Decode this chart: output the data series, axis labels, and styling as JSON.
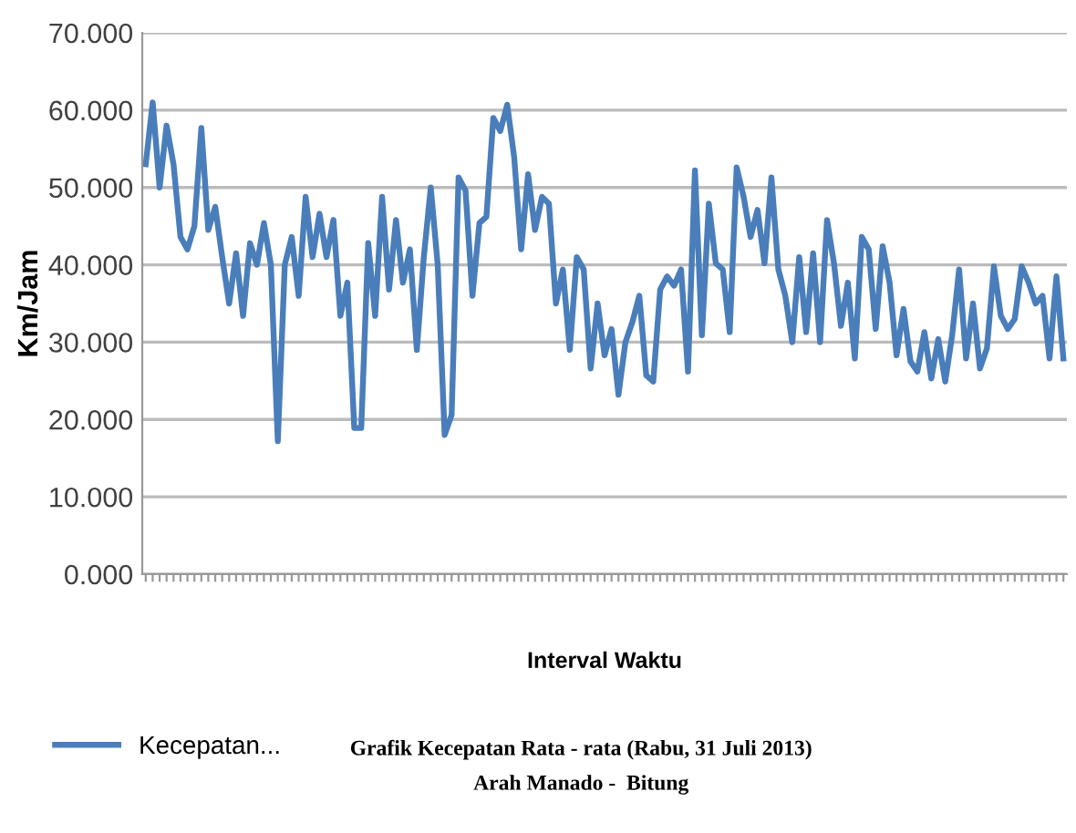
{
  "chart_data": {
    "type": "line",
    "title": "Grafik Kecepatan Rata - rata (Rabu, 31 Juli 2013)",
    "subtitle": "Arah Manado -  Bitung",
    "xlabel": "Interval Waktu",
    "ylabel": "Km/Jam",
    "categories": [
      null,
      null,
      null,
      null,
      null,
      null,
      null,
      null,
      null,
      null,
      null,
      null,
      null,
      null,
      null,
      null,
      null,
      null,
      null,
      null,
      null,
      null,
      null,
      null,
      null,
      null,
      null,
      null,
      null,
      null,
      null,
      null,
      null,
      null,
      null,
      null,
      null,
      null,
      null,
      null,
      null,
      null,
      null,
      null,
      null,
      null,
      null,
      null,
      null,
      null,
      null,
      null,
      null,
      null,
      null,
      null,
      null,
      null,
      null,
      null,
      null,
      null,
      null,
      null,
      null,
      null,
      null,
      null,
      null,
      null,
      null,
      null,
      null,
      null,
      null,
      null,
      null,
      null,
      null,
      null,
      null,
      null,
      null,
      null,
      null,
      null,
      null,
      null,
      null,
      null,
      null,
      null,
      null,
      null,
      null,
      null,
      null,
      null,
      null,
      null,
      null,
      null,
      null,
      null,
      null,
      null,
      null,
      null,
      null,
      null,
      null,
      null,
      null,
      null,
      null,
      null,
      null,
      null,
      null,
      null,
      null,
      null,
      null,
      null,
      null,
      null,
      null,
      null,
      null,
      null,
      null,
      null,
      null
    ],
    "series": [
      {
        "name": "Kecepatan...",
        "color": "#4a7ebb",
        "values": [
          53,
          61,
          50,
          58,
          53,
          43.6,
          42,
          45,
          57.7,
          44.5,
          47.5,
          41,
          35,
          41.5,
          33.4,
          42.8,
          40,
          45.4,
          40,
          17.2,
          40,
          43.6,
          36,
          48.8,
          41,
          46.6,
          41,
          45.8,
          33.4,
          37.7,
          18.9,
          18.9,
          42.8,
          33.4,
          48.8,
          36.8,
          45.8,
          37.7,
          42,
          29,
          41,
          50,
          40,
          18,
          20.6,
          51.3,
          49.6,
          36,
          45.4,
          46.2,
          59,
          57.3,
          60.7,
          53.9,
          42,
          51.7,
          44.5,
          48.8,
          47.9,
          35,
          39.4,
          29,
          41,
          39.4,
          26.6,
          35,
          28.3,
          31.7,
          23.2,
          30,
          32.6,
          36,
          25.7,
          24.9,
          36.8,
          38.5,
          37.3,
          39.4,
          26.2,
          52.2,
          30.9,
          47.9,
          40.2,
          39.4,
          31.3,
          52.6,
          48.8,
          43.6,
          47.1,
          40.2,
          51.3,
          39.4,
          36,
          30,
          41,
          31.3,
          41.5,
          30,
          45.8,
          40.2,
          32.1,
          37.7,
          27.9,
          43.6,
          42,
          31.7,
          42.4,
          37.7,
          28.3,
          34.3,
          27.5,
          26.2,
          31.3,
          25.3,
          30.4,
          24.9,
          30.9,
          39.4,
          27.9,
          35,
          26.6,
          29.2,
          39.8,
          33.4,
          31.7,
          33,
          39.8,
          37.7,
          35,
          36,
          27.9,
          38.5,
          27.9
        ]
      }
    ],
    "ylim": [
      0,
      70
    ],
    "yticks": [
      {
        "value": 0,
        "label": "0.000"
      },
      {
        "value": 10,
        "label": "10.000"
      },
      {
        "value": 20,
        "label": "20.000"
      },
      {
        "value": 30,
        "label": "30.000"
      },
      {
        "value": 40,
        "label": "40.000"
      },
      {
        "value": 50,
        "label": "50.000"
      },
      {
        "value": 60,
        "label": "60.000"
      },
      {
        "value": 70,
        "label": "70.000"
      }
    ],
    "grid": "y",
    "legend": "bottom left",
    "marker": "none",
    "line_style": "solid"
  }
}
